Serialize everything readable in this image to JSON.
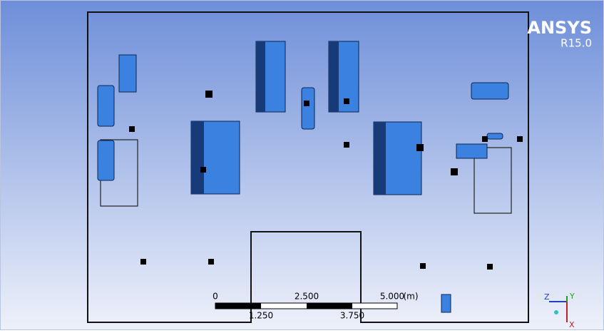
{
  "logo": {
    "brand": "ANSYS",
    "version": "R15.0"
  },
  "scale_bar": {
    "upper_labels": [
      "0",
      "2.500",
      "5.000"
    ],
    "unit": "(m)",
    "lower_labels": [
      "1.250",
      "3.750"
    ]
  },
  "axes": {
    "z": "Z",
    "y": "Y",
    "x": "X"
  }
}
